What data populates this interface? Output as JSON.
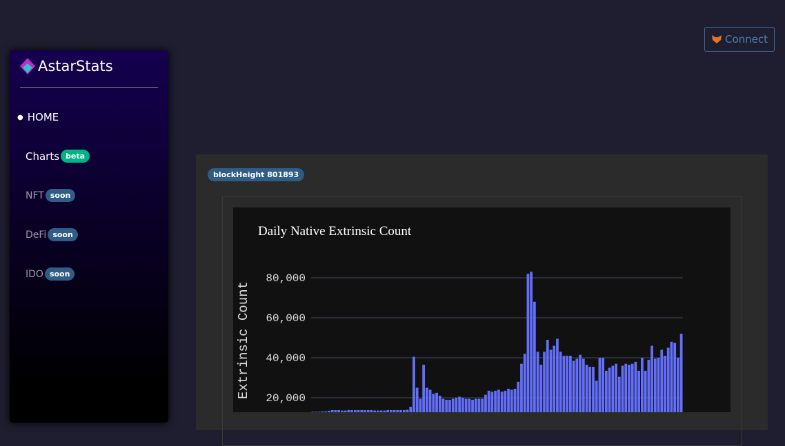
{
  "header": {
    "connect": "Connect"
  },
  "sidebar": {
    "brand": "AstarStats",
    "nav": [
      {
        "label": "HOME"
      },
      {
        "label": "Charts",
        "badge": "beta"
      },
      {
        "label": "NFT",
        "badge": "soon"
      },
      {
        "label": "DeFi",
        "badge": "soon"
      },
      {
        "label": "IDO",
        "badge": "soon"
      }
    ]
  },
  "card": {
    "badge": "blockHeight 801893"
  },
  "chart": {
    "type": "bar",
    "title": "Daily Native Extrinsic Count",
    "y_label": "Extrinsic Count",
    "color": "#636efa",
    "ylim": [
      0,
      85000
    ],
    "yticks": [
      {
        "value": 20000,
        "label": "20,000"
      },
      {
        "value": 40000,
        "label": "40,000"
      },
      {
        "value": 60000,
        "label": "60,000"
      },
      {
        "value": 80000,
        "label": "80,000"
      }
    ],
    "values": [
      13000,
      13000,
      13000,
      13200,
      13200,
      13500,
      13800,
      13800,
      13800,
      13600,
      13600,
      13800,
      13800,
      13800,
      13800,
      13800,
      13800,
      13800,
      13800,
      13600,
      13600,
      13600,
      13600,
      13800,
      13800,
      13800,
      13800,
      13800,
      13800,
      14000,
      15500,
      40500,
      25000,
      19500,
      36500,
      25000,
      24000,
      22000,
      22500,
      21000,
      19500,
      19000,
      19000,
      19500,
      20000,
      20500,
      20000,
      19500,
      19500,
      19000,
      19500,
      19500,
      19500,
      21500,
      23500,
      23000,
      23500,
      24000,
      23000,
      23500,
      24500,
      24000,
      24500,
      28000,
      37000,
      42000,
      82000,
      83000,
      68000,
      43000,
      36500,
      43000,
      49000,
      44000,
      46000,
      49500,
      43000,
      41000,
      41000,
      41000,
      38500,
      39500,
      41500,
      39500,
      36500,
      35500,
      35500,
      28500,
      40000,
      40000,
      33500,
      35000,
      36000,
      37000,
      30500,
      36000,
      37000,
      36500,
      37000,
      38000,
      33500,
      40000,
      33500,
      39000,
      46000,
      39500,
      40000,
      44000,
      41000,
      45000,
      48000,
      47500,
      40000,
      52000
    ]
  }
}
